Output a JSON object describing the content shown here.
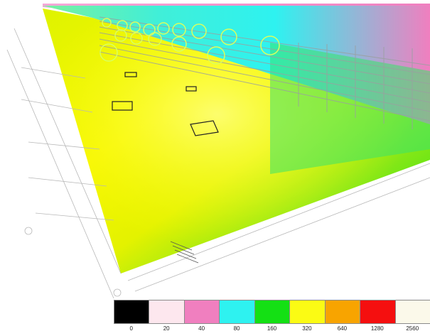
{
  "legend": {
    "bins": [
      {
        "label": "0",
        "color": "#000000"
      },
      {
        "label": "20",
        "color": "#fde7ee"
      },
      {
        "label": "40",
        "color": "#f07fbf"
      },
      {
        "label": "80",
        "color": "#2ef2f0"
      },
      {
        "label": "160",
        "color": "#14e014"
      },
      {
        "label": "320",
        "color": "#fbfb14"
      },
      {
        "label": "640",
        "color": "#f8a400"
      },
      {
        "label": "1280",
        "color": "#f50f0f"
      },
      {
        "label": "2560",
        "color": "#fbf9ea"
      }
    ]
  },
  "scene": {
    "type": "illuminance false-color 3D view",
    "colors": {
      "floor_bright": "#f6f600",
      "floor_mid": "#14e014",
      "ceiling": "#2ef2f0",
      "sky": "#f07fbf",
      "fixture": "#c8ff3a"
    }
  }
}
